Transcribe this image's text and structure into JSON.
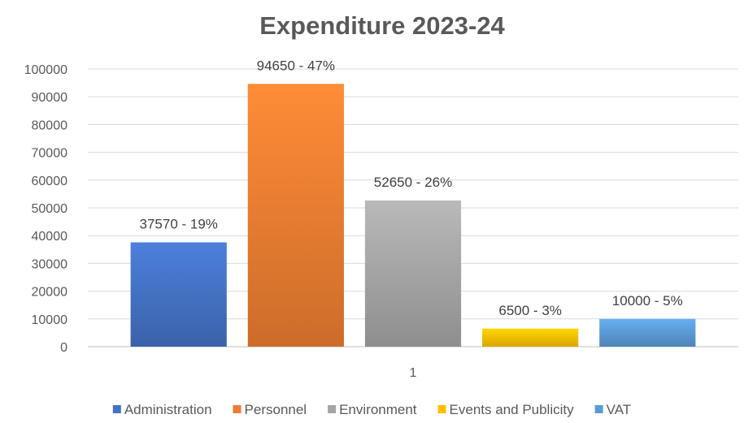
{
  "chart_data": {
    "type": "bar",
    "title": "Expenditure 2023-24",
    "categories": [
      "1"
    ],
    "series": [
      {
        "name": "Administration",
        "values": [
          37570
        ],
        "label": "37570 - 19%",
        "color": "#4472c4"
      },
      {
        "name": "Personnel",
        "values": [
          94650
        ],
        "label": "94650 - 47%",
        "color": "#ed7d31"
      },
      {
        "name": "Environment",
        "values": [
          52650
        ],
        "label": "52650 - 26%",
        "color": "#a5a5a5"
      },
      {
        "name": "Events and Publicity",
        "values": [
          6500
        ],
        "label": "6500 - 3%",
        "color": "#ffc000"
      },
      {
        "name": "VAT",
        "values": [
          10000
        ],
        "label": "10000 - 5%",
        "color": "#5b9bd5"
      }
    ],
    "ylim": [
      0,
      100000
    ],
    "yticks": [
      0,
      10000,
      20000,
      30000,
      40000,
      50000,
      60000,
      70000,
      80000,
      90000,
      100000
    ],
    "xlabel": "",
    "ylabel": "",
    "grid": true,
    "legend": "bottom"
  }
}
